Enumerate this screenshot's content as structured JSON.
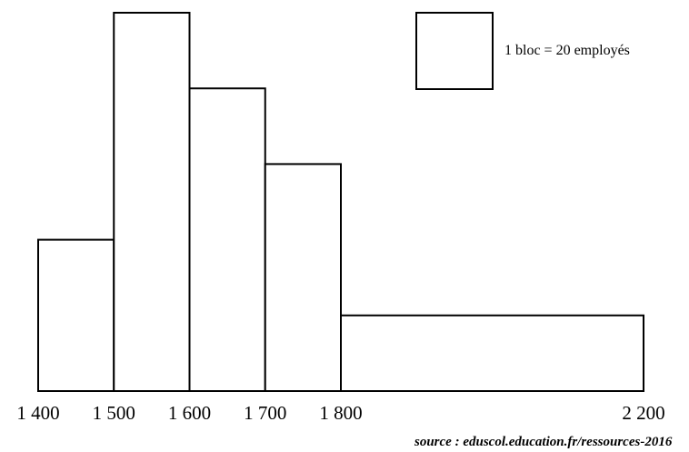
{
  "chart_data": {
    "type": "bar",
    "title": "",
    "xlabel": "",
    "ylabel": "",
    "x_ticks": [
      1400,
      1500,
      1600,
      1700,
      1800,
      2200
    ],
    "x_tick_labels": [
      "1 400",
      "1 500",
      "1 600",
      "1 700",
      "1 800",
      "2 200"
    ],
    "xlim": [
      1400,
      2200
    ],
    "bins": [
      {
        "from": 1400,
        "to": 1500,
        "blocks": 2
      },
      {
        "from": 1500,
        "to": 1600,
        "blocks": 5
      },
      {
        "from": 1600,
        "to": 1700,
        "blocks": 4
      },
      {
        "from": 1700,
        "to": 1800,
        "blocks": 3
      },
      {
        "from": 1800,
        "to": 2200,
        "blocks": 1
      }
    ],
    "ylim": [
      0,
      5
    ],
    "grid": false,
    "legend": {
      "label": "1 bloc = 20 employés",
      "placement": "top-right"
    },
    "source": "source : eduscol.education.fr/ressources-2016"
  },
  "colors": {
    "stroke": "#000000",
    "fill": "#ffffff"
  }
}
